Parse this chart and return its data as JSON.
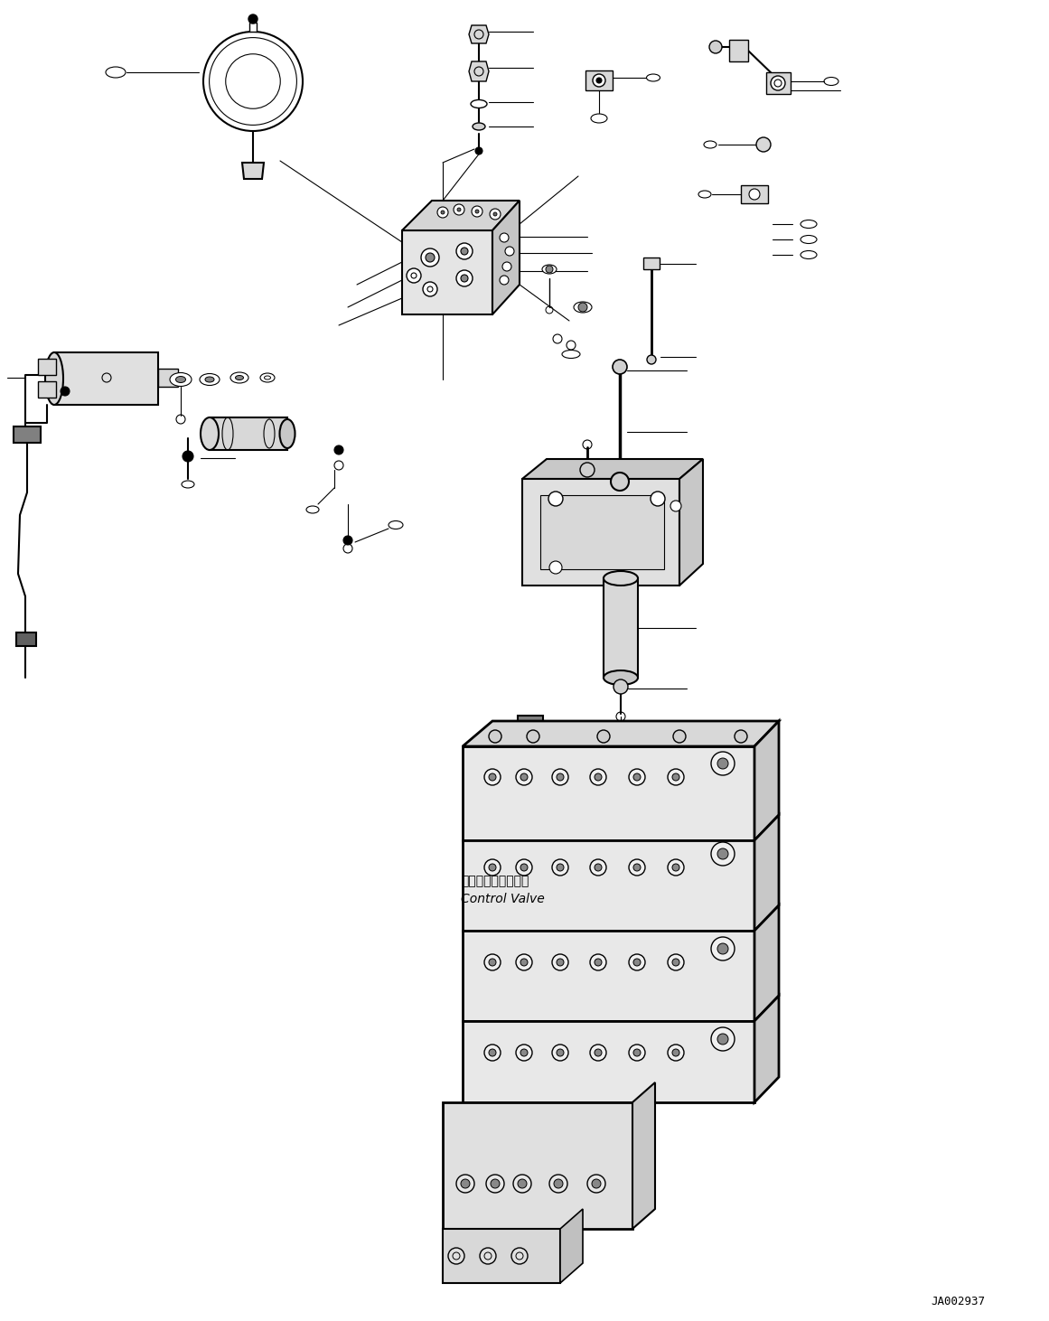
{
  "bg_color": "#ffffff",
  "line_color": "#000000",
  "fig_width": 11.61,
  "fig_height": 14.62,
  "diagram_code": "JA002937",
  "control_valve_label_jp": "コントロールバルブ",
  "control_valve_label_en": "Control Valve"
}
